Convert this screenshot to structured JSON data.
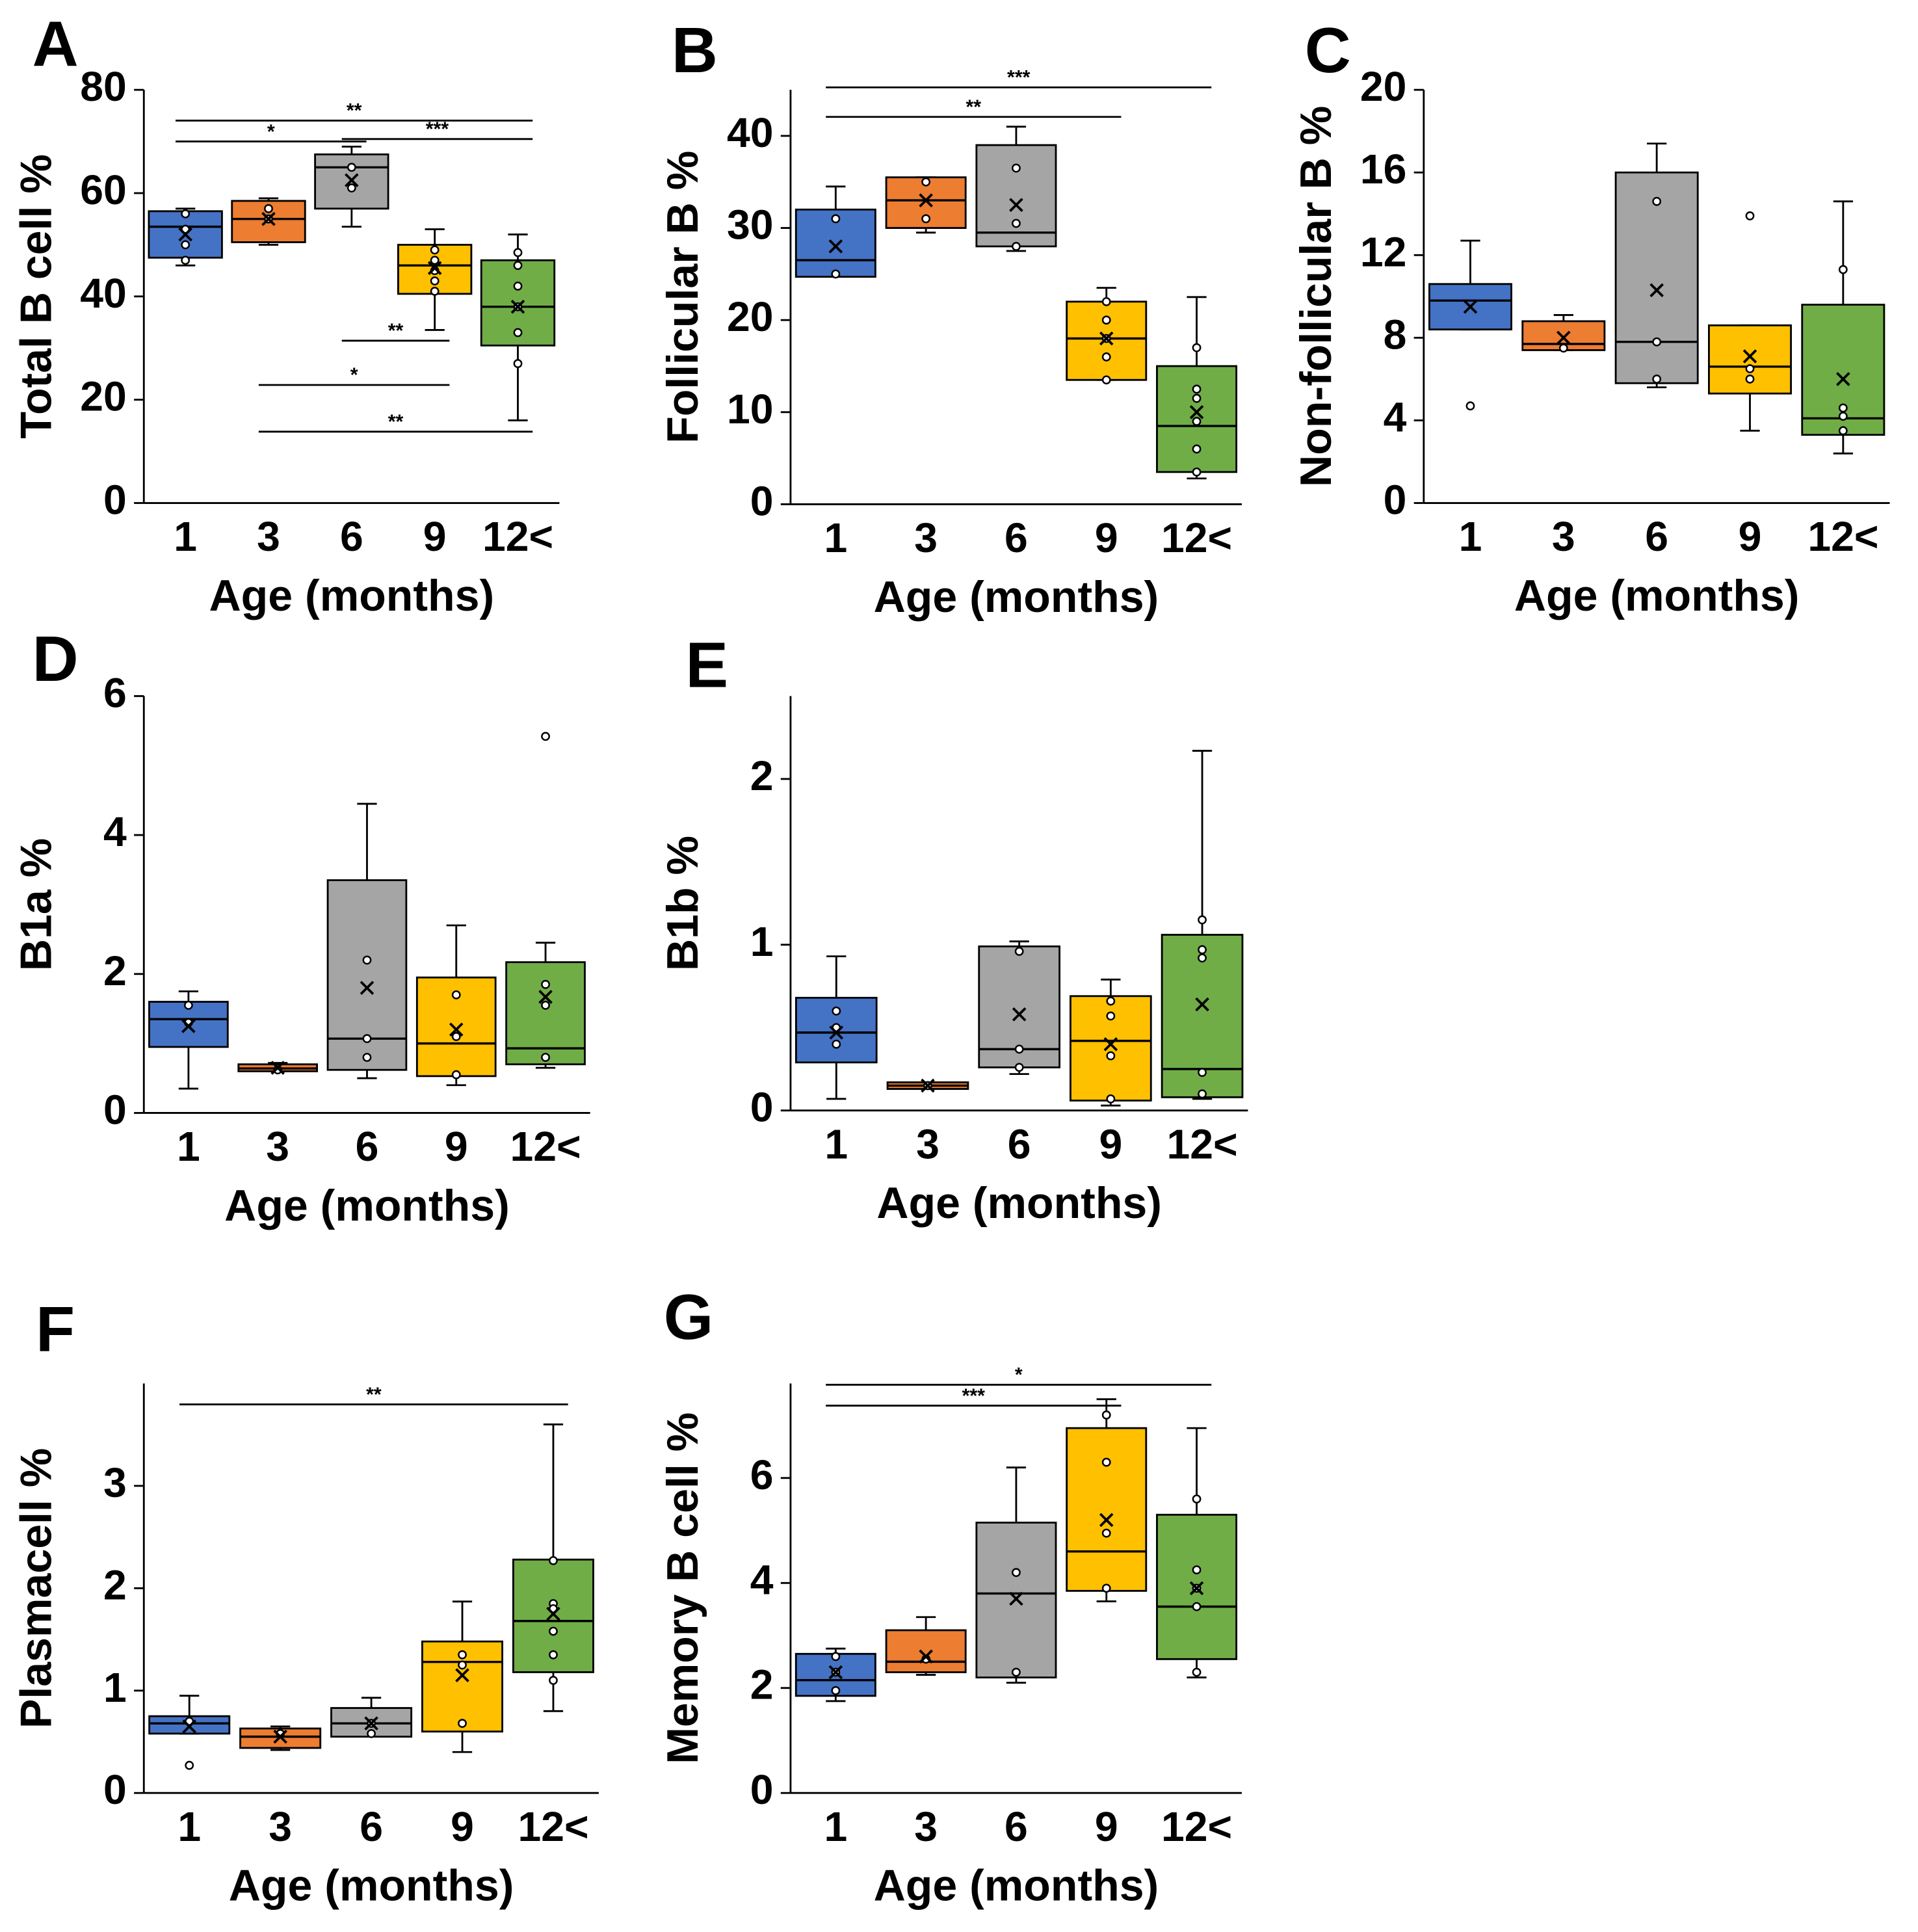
{
  "chart_data": [
    {
      "type": "box",
      "panel": "A",
      "ylabel": "Total B cell %",
      "xlabel": "Age (months)",
      "categories": [
        "1",
        "3",
        "6",
        "9",
        "12<"
      ],
      "colors": [
        "#4472c4",
        "#ed7d31",
        "#a5a5a5",
        "#ffc000",
        "#70ad47"
      ],
      "ylim": [
        0,
        80
      ],
      "yticks": [
        0,
        20,
        40,
        60,
        80
      ],
      "boxes": [
        {
          "min": 46,
          "q1": 47.5,
          "median": 53.5,
          "q3": 56.5,
          "max": 57,
          "mean": 52,
          "points": [
            56,
            53,
            50,
            47
          ]
        },
        {
          "min": 50,
          "q1": 50.5,
          "median": 55,
          "q3": 58.5,
          "max": 59,
          "mean": 55,
          "points": [
            57,
            55
          ]
        },
        {
          "min": 53.5,
          "q1": 57,
          "median": 65,
          "q3": 67.5,
          "max": 69,
          "mean": 62.5,
          "points": [
            65,
            61
          ]
        },
        {
          "min": 33.5,
          "q1": 40.5,
          "median": 46,
          "q3": 50,
          "max": 53,
          "mean": 45.5,
          "points": [
            49,
            47,
            45,
            43,
            41
          ]
        },
        {
          "min": 16,
          "q1": 30.5,
          "median": 38,
          "q3": 47,
          "max": 52,
          "mean": 38,
          "points": [
            48.5,
            46,
            42,
            38,
            33,
            27
          ]
        }
      ],
      "annotations": [
        {
          "text": "**",
          "from": "1",
          "to": "12<"
        },
        {
          "text": "*",
          "from": "1",
          "to": "6"
        },
        {
          "text": "***",
          "from": "6",
          "to": "12<"
        },
        {
          "text": "**",
          "from": "6",
          "to": "9"
        },
        {
          "text": "*",
          "from": "3",
          "to": "9"
        },
        {
          "text": "**",
          "from": "3",
          "to": "12<"
        }
      ]
    },
    {
      "type": "box",
      "panel": "B",
      "ylabel": "Follicular B %",
      "xlabel": "Age (months)",
      "categories": [
        "1",
        "3",
        "6",
        "9",
        "12<"
      ],
      "colors": [
        "#4472c4",
        "#ed7d31",
        "#a5a5a5",
        "#ffc000",
        "#70ad47"
      ],
      "ylim": [
        0,
        45
      ],
      "yticks": [
        0,
        10,
        20,
        30,
        40
      ],
      "boxes": [
        {
          "min": 24.7,
          "q1": 24.7,
          "median": 26.5,
          "q3": 32,
          "max": 34.5,
          "mean": 28,
          "points": [
            31,
            25
          ]
        },
        {
          "min": 29.5,
          "q1": 30,
          "median": 33,
          "q3": 35.5,
          "max": 35.5,
          "mean": 33,
          "points": [
            35,
            31
          ]
        },
        {
          "min": 27.5,
          "q1": 28,
          "median": 29.5,
          "q3": 39,
          "max": 41,
          "mean": 32.5,
          "points": [
            36.5,
            30.5,
            28
          ]
        },
        {
          "min": 13.5,
          "q1": 13.5,
          "median": 18,
          "q3": 22,
          "max": 23.5,
          "mean": 18,
          "points": [
            22,
            20,
            18,
            16,
            13.5
          ]
        },
        {
          "min": 2.8,
          "q1": 3.5,
          "median": 8.5,
          "q3": 15,
          "max": 22.5,
          "mean": 10,
          "points": [
            17,
            12.5,
            11.5,
            9,
            6,
            3.5
          ]
        }
      ],
      "annotations": [
        {
          "text": "***",
          "from": "1",
          "to": "12<"
        },
        {
          "text": "**",
          "from": "1",
          "to": "9"
        }
      ]
    },
    {
      "type": "box",
      "panel": "C",
      "ylabel": "Non-follicular B %",
      "xlabel": "Age (months)",
      "categories": [
        "1",
        "3",
        "6",
        "9",
        "12<"
      ],
      "colors": [
        "#4472c4",
        "#ed7d31",
        "#a5a5a5",
        "#ffc000",
        "#70ad47"
      ],
      "ylim": [
        0,
        20
      ],
      "yticks": [
        0,
        4,
        8,
        12,
        16,
        20
      ],
      "boxes": [
        {
          "min": 8.4,
          "q1": 8.4,
          "median": 9.8,
          "q3": 10.6,
          "max": 12.7,
          "mean": 9.5,
          "points": [
            4.7
          ]
        },
        {
          "min": 7.4,
          "q1": 7.4,
          "median": 7.7,
          "q3": 8.8,
          "max": 9.1,
          "mean": 8,
          "points": [
            7.5
          ]
        },
        {
          "min": 5.6,
          "q1": 5.8,
          "median": 7.8,
          "q3": 16,
          "max": 17.4,
          "mean": 10.3,
          "points": [
            14.6,
            7.8,
            6
          ]
        },
        {
          "min": 3.5,
          "q1": 5.3,
          "median": 6.6,
          "q3": 8.6,
          "max": 8.6,
          "mean": 7.1,
          "points": [
            13.9,
            6.5,
            6
          ]
        },
        {
          "min": 2.4,
          "q1": 3.3,
          "median": 4.1,
          "q3": 9.6,
          "max": 14.6,
          "mean": 6,
          "points": [
            11.3,
            4.6,
            4.2,
            3.5
          ]
        }
      ],
      "annotations": []
    },
    {
      "type": "box",
      "panel": "D",
      "ylabel": "B1a %",
      "xlabel": "Age (months)",
      "categories": [
        "1",
        "3",
        "6",
        "9",
        "12<"
      ],
      "colors": [
        "#4472c4",
        "#ed7d31",
        "#a5a5a5",
        "#ffc000",
        "#70ad47"
      ],
      "ylim": [
        0,
        6
      ],
      "yticks": [
        0,
        2,
        4,
        6
      ],
      "boxes": [
        {
          "min": 0.35,
          "q1": 0.95,
          "median": 1.35,
          "q3": 1.6,
          "max": 1.75,
          "mean": 1.25,
          "points": [
            1.55,
            1.3
          ]
        },
        {
          "min": 0.6,
          "q1": 0.6,
          "median": 0.64,
          "q3": 0.7,
          "max": 0.72,
          "mean": 0.65,
          "points": [
            0.62
          ]
        },
        {
          "min": 0.5,
          "q1": 0.62,
          "median": 1.07,
          "q3": 3.35,
          "max": 4.45,
          "mean": 1.8,
          "points": [
            2.2,
            1.07,
            0.8
          ]
        },
        {
          "min": 0.4,
          "q1": 0.53,
          "median": 1,
          "q3": 1.95,
          "max": 2.7,
          "mean": 1.2,
          "points": [
            1.7,
            1.1,
            0.55
          ]
        },
        {
          "min": 0.65,
          "q1": 0.7,
          "median": 0.93,
          "q3": 2.17,
          "max": 2.45,
          "mean": 1.67,
          "points": [
            5.42,
            1.85,
            1.55,
            0.8
          ]
        }
      ],
      "annotations": []
    },
    {
      "type": "box",
      "panel": "E",
      "ylabel": "B1b %",
      "xlabel": "Age (months)",
      "categories": [
        "1",
        "3",
        "6",
        "9",
        "12<"
      ],
      "colors": [
        "#4472c4",
        "#ed7d31",
        "#a5a5a5",
        "#ffc000",
        "#70ad47"
      ],
      "ylim": [
        0,
        2.5
      ],
      "yticks": [
        0,
        1,
        2
      ],
      "boxes": [
        {
          "min": 0.07,
          "q1": 0.29,
          "median": 0.47,
          "q3": 0.68,
          "max": 0.93,
          "mean": 0.47,
          "points": [
            0.6,
            0.5,
            0.4
          ]
        },
        {
          "min": 0.13,
          "q1": 0.13,
          "median": 0.15,
          "q3": 0.17,
          "max": 0.17,
          "mean": 0.15,
          "points": [
            0.15
          ]
        },
        {
          "min": 0.22,
          "q1": 0.26,
          "median": 0.37,
          "q3": 0.99,
          "max": 1.02,
          "mean": 0.58,
          "points": [
            0.96,
            0.37,
            0.26
          ]
        },
        {
          "min": 0.03,
          "q1": 0.06,
          "median": 0.42,
          "q3": 0.69,
          "max": 0.79,
          "mean": 0.4,
          "points": [
            0.66,
            0.57,
            0.33,
            0.07
          ]
        },
        {
          "min": 0.07,
          "q1": 0.08,
          "median": 0.25,
          "q3": 1.06,
          "max": 2.17,
          "mean": 0.64,
          "points": [
            1.15,
            0.97,
            0.92,
            0.23,
            0.1
          ]
        }
      ],
      "annotations": []
    },
    {
      "type": "box",
      "panel": "F",
      "ylabel": "Plasmacell %",
      "xlabel": "Age (months)",
      "categories": [
        "1",
        "3",
        "6",
        "9",
        "12<"
      ],
      "colors": [
        "#4472c4",
        "#ed7d31",
        "#a5a5a5",
        "#ffc000",
        "#70ad47"
      ],
      "ylim": [
        0,
        4
      ],
      "yticks": [
        0,
        1,
        2,
        3
      ],
      "boxes": [
        {
          "min": 0.58,
          "q1": 0.58,
          "median": 0.68,
          "q3": 0.75,
          "max": 0.95,
          "mean": 0.65,
          "points": [
            0.7,
            0.27
          ]
        },
        {
          "min": 0.42,
          "q1": 0.44,
          "median": 0.55,
          "q3": 0.63,
          "max": 0.65,
          "mean": 0.55,
          "points": [
            0.58
          ]
        },
        {
          "min": 0.55,
          "q1": 0.55,
          "median": 0.68,
          "q3": 0.83,
          "max": 0.93,
          "mean": 0.68,
          "points": [
            0.68,
            0.58
          ]
        },
        {
          "min": 0.4,
          "q1": 0.6,
          "median": 1.28,
          "q3": 1.48,
          "max": 1.87,
          "mean": 1.15,
          "points": [
            1.35,
            1.25,
            0.68
          ]
        },
        {
          "min": 0.8,
          "q1": 1.18,
          "median": 1.68,
          "q3": 2.28,
          "max": 3.6,
          "mean": 1.75,
          "points": [
            2.27,
            1.85,
            1.8,
            1.58,
            1.35,
            1.1
          ]
        }
      ],
      "annotations": [
        {
          "text": "**",
          "from": "1",
          "to": "12<"
        }
      ]
    },
    {
      "type": "box",
      "panel": "G",
      "ylabel": "Memory B cell %",
      "xlabel": "Age (months)",
      "categories": [
        "1",
        "3",
        "6",
        "9",
        "12<"
      ],
      "colors": [
        "#4472c4",
        "#ed7d31",
        "#a5a5a5",
        "#ffc000",
        "#70ad47"
      ],
      "ylim": [
        0,
        7.8
      ],
      "yticks": [
        0,
        2,
        4,
        6
      ],
      "boxes": [
        {
          "min": 1.75,
          "q1": 1.85,
          "median": 2.15,
          "q3": 2.65,
          "max": 2.75,
          "mean": 2.3,
          "points": [
            2.6,
            2.3,
            1.95
          ]
        },
        {
          "min": 2.25,
          "q1": 2.3,
          "median": 2.5,
          "q3": 3.1,
          "max": 3.35,
          "mean": 2.6,
          "points": [
            2.55
          ]
        },
        {
          "min": 2.1,
          "q1": 2.2,
          "median": 3.8,
          "q3": 5.15,
          "max": 6.2,
          "mean": 3.7,
          "points": [
            4.2,
            2.3
          ]
        },
        {
          "min": 3.65,
          "q1": 3.85,
          "median": 4.6,
          "q3": 6.95,
          "max": 7.5,
          "mean": 5.2,
          "points": [
            7.2,
            6.3,
            4.95,
            3.9
          ]
        },
        {
          "min": 2.2,
          "q1": 2.55,
          "median": 3.55,
          "q3": 5.3,
          "max": 6.95,
          "mean": 3.9,
          "points": [
            5.6,
            4.25,
            3.9,
            3.55,
            2.3
          ]
        }
      ],
      "annotations": [
        {
          "text": "*",
          "from": "1",
          "to": "12<"
        },
        {
          "text": "***",
          "from": "1",
          "to": "9"
        }
      ]
    }
  ]
}
